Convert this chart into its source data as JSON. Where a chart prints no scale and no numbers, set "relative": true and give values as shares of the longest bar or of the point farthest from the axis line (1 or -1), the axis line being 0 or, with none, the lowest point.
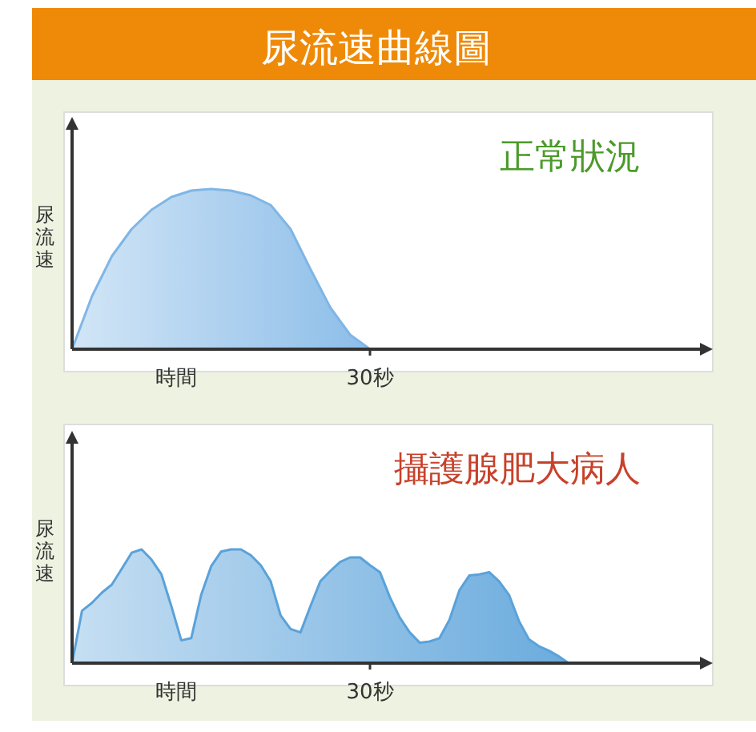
{
  "chart_data": [
    {
      "type": "area",
      "title": "尿流速曲線圖",
      "annotations": [
        "正常狀況",
        "30秒"
      ],
      "xlabel": "時間",
      "ylabel": "尿流速",
      "relative": true,
      "categories": [
        null,
        null,
        null,
        null,
        null,
        null,
        null,
        null,
        null,
        null,
        null,
        null,
        null,
        null,
        null,
        null
      ],
      "series": [
        {
          "color": "#7fb6e6",
          "values": [
            0,
            0.33,
            0.58,
            0.75,
            0.87,
            0.95,
            0.99,
            1.0,
            0.99,
            0.96,
            0.9,
            0.75,
            0.5,
            0.26,
            0.09,
            0
          ]
        }
      ]
    },
    {
      "type": "area",
      "annotations": [
        "攝護腺肥大病人",
        "30秒"
      ],
      "xlabel": "時間",
      "ylabel": "尿流速",
      "relative": true,
      "categories": [
        null,
        null,
        null,
        null,
        null,
        null,
        null,
        null,
        null,
        null,
        null,
        null,
        null,
        null,
        null,
        null,
        null,
        null,
        null,
        null,
        null,
        null,
        null,
        null,
        null,
        null,
        null,
        null,
        null,
        null,
        null,
        null,
        null,
        null,
        null,
        null,
        null,
        null,
        null,
        null,
        null,
        null,
        null,
        null,
        null,
        null,
        null,
        null,
        null,
        null,
        null
      ],
      "series": [
        {
          "color": "#5aa2da",
          "values": [
            0,
            0.46,
            0.53,
            0.62,
            0.69,
            0.83,
            0.97,
            1.0,
            0.91,
            0.78,
            0.5,
            0.2,
            0.22,
            0.6,
            0.85,
            0.98,
            1.0,
            1.0,
            0.95,
            0.86,
            0.72,
            0.42,
            0.3,
            0.27,
            0.5,
            0.72,
            0.81,
            0.89,
            0.93,
            0.93,
            0.86,
            0.8,
            0.58,
            0.4,
            0.27,
            0.18,
            0.19,
            0.22,
            0.38,
            0.64,
            0.77,
            0.78,
            0.8,
            0.72,
            0.6,
            0.37,
            0.21,
            0.15,
            0.11,
            0.06,
            0
          ]
        }
      ]
    }
  ]
}
